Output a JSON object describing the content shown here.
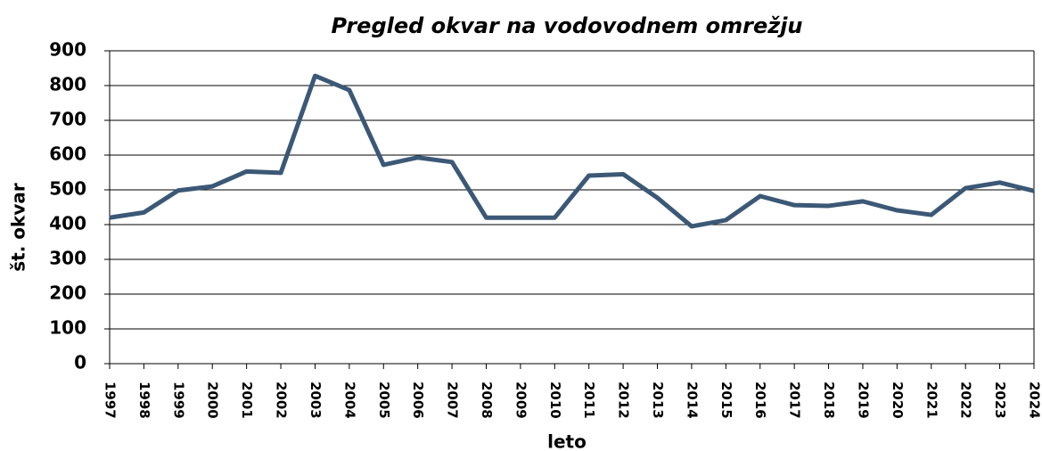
{
  "chart_data": {
    "type": "line",
    "title": "Pregled okvar na vodovodnem omrežju",
    "x_label": "leto",
    "y_label": "št. okvar",
    "categories": [
      "1997",
      "1998",
      "1999",
      "2000",
      "2001",
      "2002",
      "2003",
      "2004",
      "2005",
      "2006",
      "2007",
      "2008",
      "2009",
      "2010",
      "2011",
      "2012",
      "2013",
      "2014",
      "2015",
      "2016",
      "2017",
      "2018",
      "2019",
      "2020",
      "2021",
      "2022",
      "2023",
      "2024"
    ],
    "series": [
      {
        "name": "št. okvar",
        "color": "#3b5876",
        "values": [
          420,
          435,
          498,
          510,
          553,
          549,
          828,
          787,
          572,
          593,
          580,
          420,
          420,
          420,
          541,
          545,
          477,
          395,
          413,
          482,
          456,
          454,
          467,
          441,
          428,
          505,
          521,
          497
        ]
      }
    ],
    "ylim": [
      0,
      900
    ],
    "yticks": [
      0,
      100,
      200,
      300,
      400,
      500,
      600,
      700,
      800,
      900
    ],
    "grid": true
  }
}
